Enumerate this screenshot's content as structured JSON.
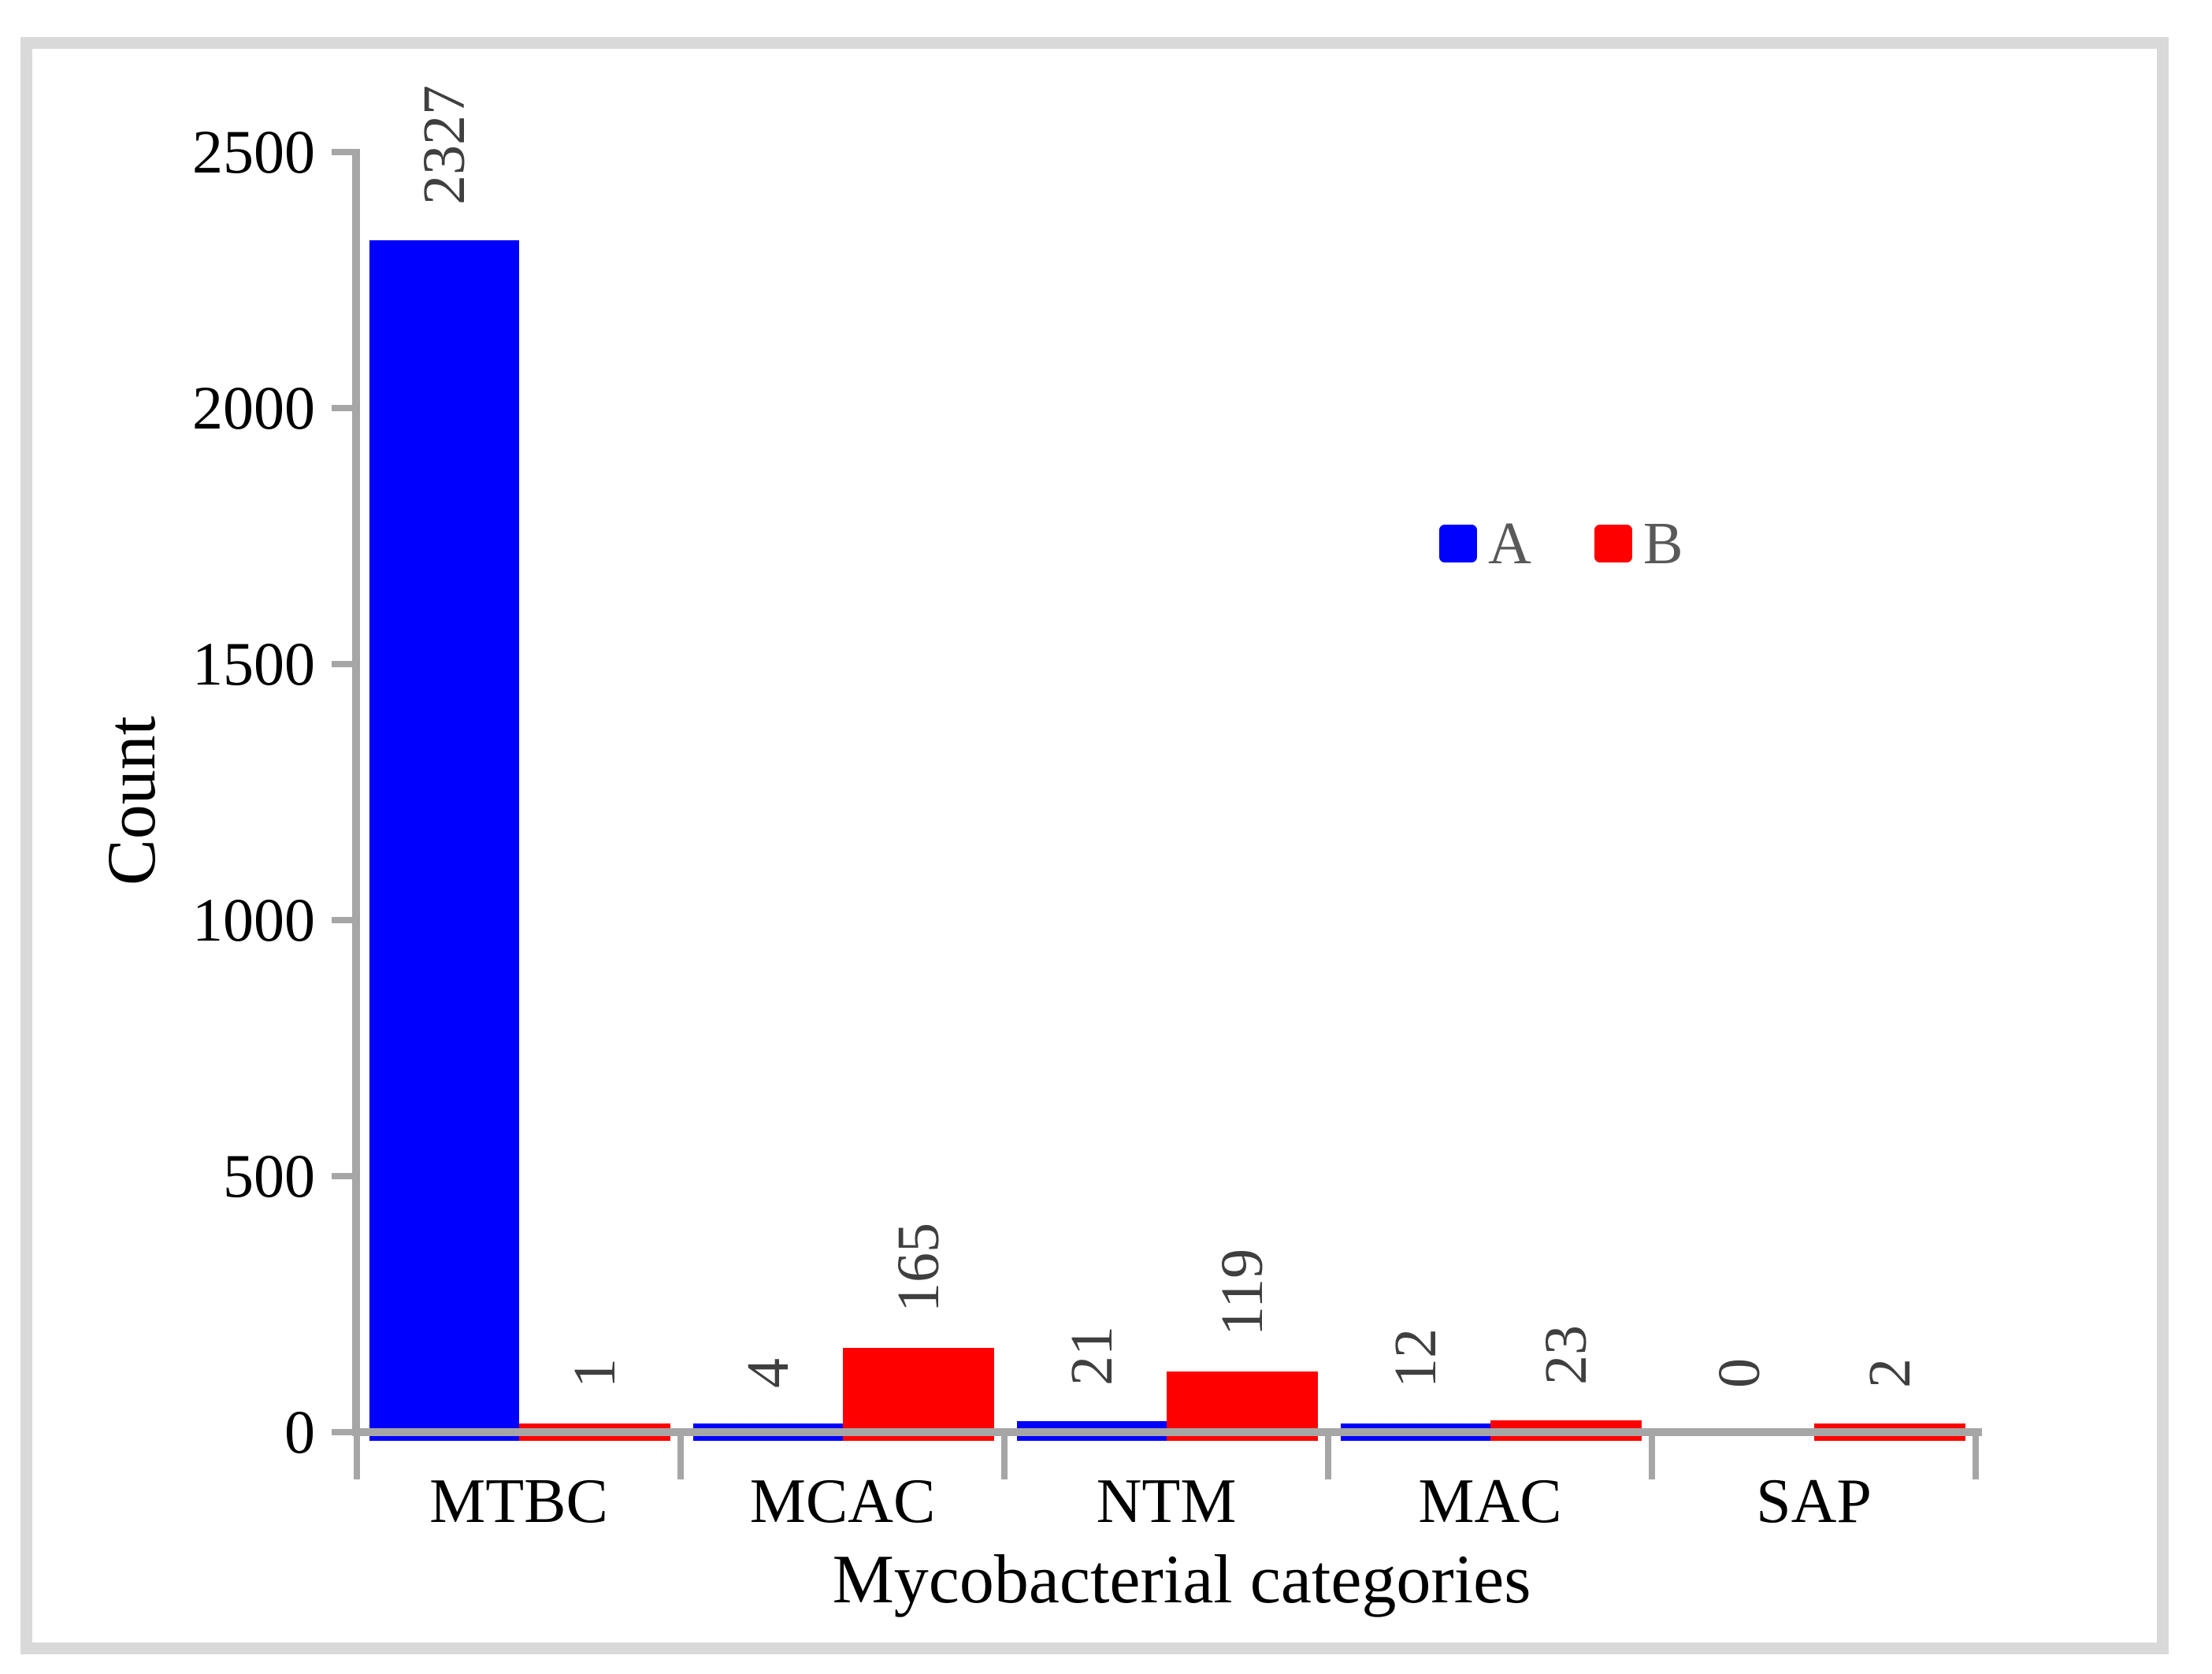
{
  "chart_data": {
    "type": "bar",
    "title": "",
    "xlabel": "Mycobacterial categories",
    "ylabel": "Count",
    "categories": [
      "MTBC",
      "MCAC",
      "NTM",
      "MAC",
      "SAP"
    ],
    "series": [
      {
        "name": "A",
        "color": "#0000ff",
        "values": [
          2327,
          4,
          21,
          12,
          0
        ]
      },
      {
        "name": "B",
        "color": "#ff0000",
        "values": [
          1,
          165,
          119,
          23,
          2
        ]
      }
    ],
    "bar_value_labels": {
      "A": [
        "2327",
        "4",
        "21",
        "12",
        "0"
      ],
      "B": [
        "1",
        "165",
        "119",
        "23",
        "2"
      ]
    },
    "ylim": [
      0,
      2500
    ],
    "yticks": [
      0,
      500,
      1000,
      1500,
      2000,
      2500
    ],
    "grid": false,
    "legend_position": "inside-upper-right",
    "value_labels_rotated_degrees": -90
  },
  "colors": {
    "series_a": "#0000ff",
    "series_b": "#ff0000",
    "axis": "#a6a6a6",
    "frame": "#d9d9d9",
    "value_label_text": "#3f3f3f",
    "legend_text": "#595959",
    "axis_text": "#000000",
    "background": "#ffffff"
  }
}
